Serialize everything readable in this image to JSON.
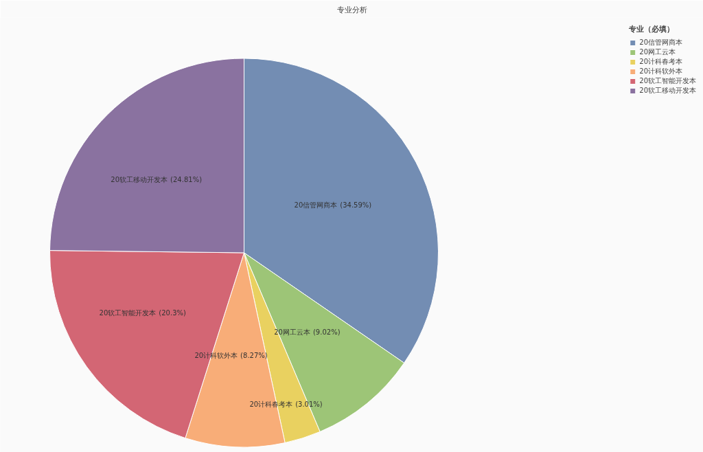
{
  "chart_data": {
    "type": "pie",
    "title": "专业分析",
    "legend_title": "专业（必填）",
    "categories": [
      "20信管网商本",
      "20网工云本",
      "20计科春考本",
      "20计科软外本",
      "20软工智能开发本",
      "20软工移动开发本"
    ],
    "values": [
      34.59,
      9.02,
      3.01,
      8.27,
      20.3,
      24.81
    ],
    "colors": [
      "#738db3",
      "#9dc577",
      "#e9d160",
      "#f8ad78",
      "#d36674",
      "#8a72a0"
    ],
    "value_labels": [
      "(34.59%)",
      "(9.02%)",
      "(3.01%)",
      "(8.27%)",
      "(20.3%)",
      "(24.81%)"
    ],
    "legend": "top right"
  }
}
